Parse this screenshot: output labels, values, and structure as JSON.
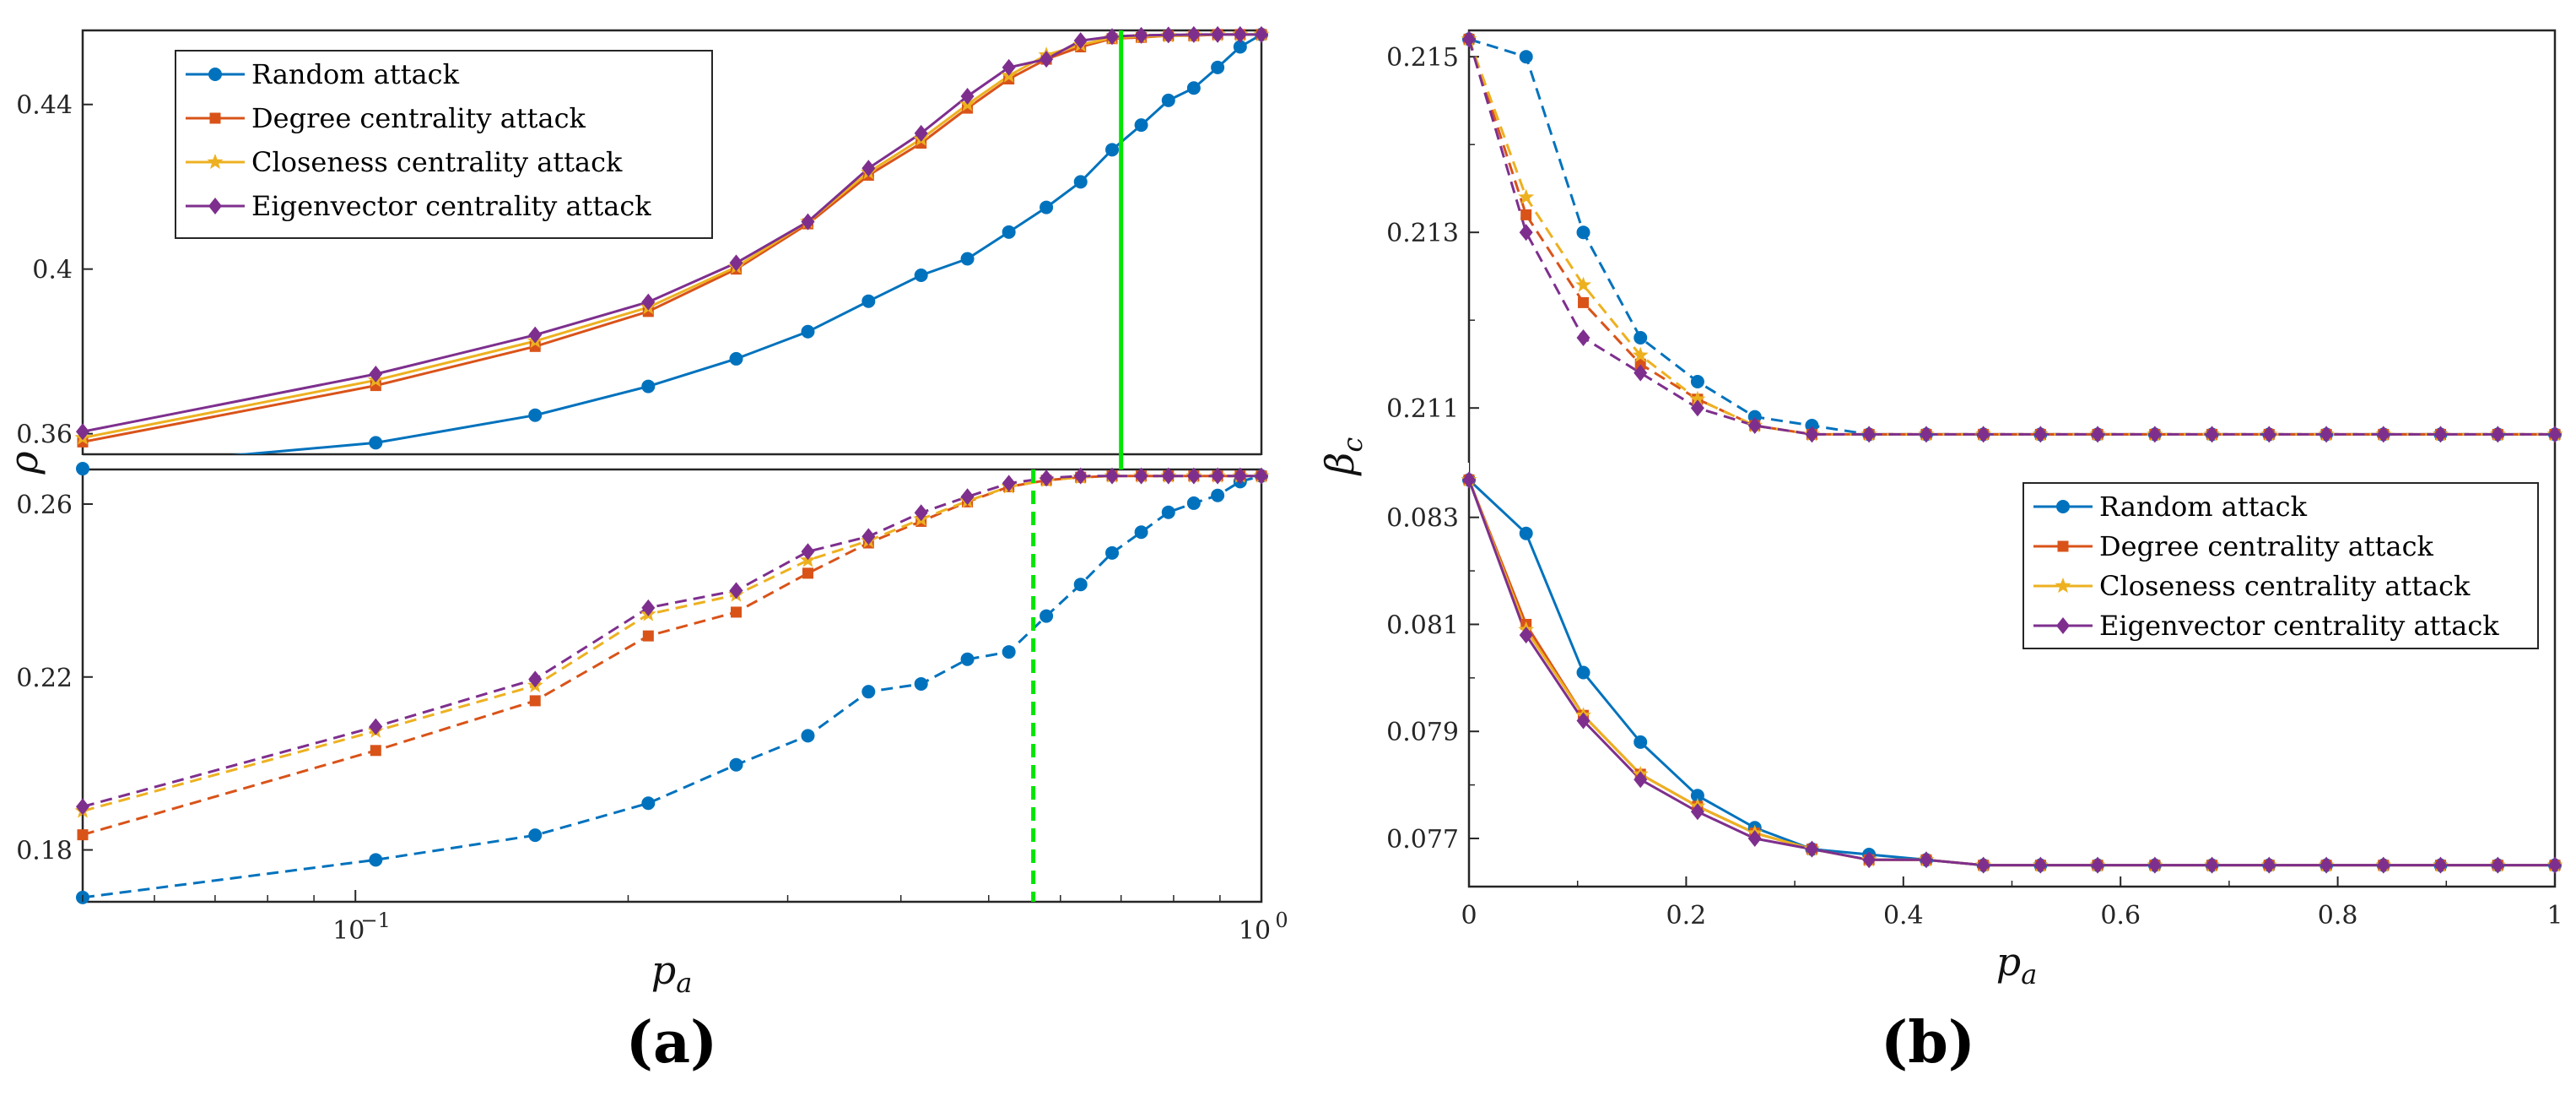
{
  "colors": {
    "random": "#0072BD",
    "degree": "#D95319",
    "closeness": "#EDB120",
    "eigenvector": "#7E2F8E",
    "green": "#00E600"
  },
  "panels": {
    "a": {
      "label": "(a)",
      "xlabel": "p",
      "xlabel_sub": "a",
      "ylabel": "ρ",
      "xticks": [
        "10",
        "10"
      ],
      "xtick_exps": [
        "−1",
        "0"
      ]
    },
    "b": {
      "label": "(b)",
      "xlabel": "p",
      "xlabel_sub": "a",
      "ylabel": "β",
      "ylabel_sub": "c"
    }
  },
  "legend": [
    "Random attack",
    "Degree centrality attack",
    "Closeness centrality attack",
    "Eigenvector centrality attack"
  ],
  "chart_data": [
    {
      "type": "line",
      "title": "(a) top: rho vs p_a (solid lines)",
      "xscale": "log",
      "xlim": [
        0.05,
        1.0
      ],
      "ylim": [
        0.355,
        0.458
      ],
      "yticks": [
        0.36,
        0.4,
        0.44
      ],
      "ytick_labels": [
        "0.36",
        "0.4",
        "0.44"
      ],
      "x": [
        0.05,
        0.1053,
        0.1579,
        0.2105,
        0.2632,
        0.3158,
        0.3684,
        0.4211,
        0.4737,
        0.5263,
        0.5789,
        0.6316,
        0.6842,
        0.7368,
        0.7895,
        0.8421,
        0.8947,
        0.9474,
        1.0
      ],
      "series": [
        {
          "name": "Random attack",
          "values": [
            0.3515,
            0.3578,
            0.3645,
            0.3715,
            0.3782,
            0.3848,
            0.3922,
            0.3985,
            0.4025,
            0.409,
            0.415,
            0.4212,
            0.429,
            0.435,
            0.441,
            0.444,
            0.449,
            0.454,
            0.457
          ]
        },
        {
          "name": "Degree centrality attack",
          "values": [
            0.358,
            0.3717,
            0.3812,
            0.3897,
            0.4,
            0.411,
            0.4228,
            0.4306,
            0.4391,
            0.4462,
            0.451,
            0.454,
            0.456,
            0.4563,
            0.4567,
            0.4567,
            0.457,
            0.457,
            0.457
          ]
        },
        {
          "name": "Closeness centrality attack",
          "values": [
            0.359,
            0.373,
            0.3825,
            0.3907,
            0.4005,
            0.4115,
            0.4235,
            0.4316,
            0.44,
            0.447,
            0.452,
            0.4545,
            0.4562,
            0.4565,
            0.4567,
            0.4568,
            0.457,
            0.457,
            0.457
          ]
        },
        {
          "name": "Eigenvector centrality attack",
          "values": [
            0.3605,
            0.3745,
            0.384,
            0.392,
            0.4015,
            0.4115,
            0.4245,
            0.433,
            0.442,
            0.449,
            0.451,
            0.4555,
            0.4565,
            0.4568,
            0.4569,
            0.457,
            0.457,
            0.457,
            0.457
          ]
        }
      ],
      "vline": {
        "x": 0.7,
        "style": "solid"
      }
    },
    {
      "type": "line",
      "title": "(a) bottom: rho vs p_a (dashed lines)",
      "xscale": "log",
      "xlim": [
        0.05,
        1.0
      ],
      "ylim": [
        0.168,
        0.268
      ],
      "yticks": [
        0.18,
        0.22,
        0.26
      ],
      "ytick_labels": [
        "0.18",
        "0.22",
        "0.26"
      ],
      "x": [
        0.05,
        0.1053,
        0.1579,
        0.2105,
        0.2632,
        0.3158,
        0.3684,
        0.4211,
        0.4737,
        0.5263,
        0.5789,
        0.6316,
        0.6842,
        0.7368,
        0.7895,
        0.8421,
        0.8947,
        0.9474,
        1.0
      ],
      "series": [
        {
          "name": "Random attack",
          "values": [
            0.169,
            0.1777,
            0.1834,
            0.1908,
            0.1997,
            0.2064,
            0.2166,
            0.2184,
            0.2241,
            0.2258,
            0.2341,
            0.2414,
            0.2487,
            0.2535,
            0.2581,
            0.2602,
            0.262,
            0.2652,
            0.2665
          ]
        },
        {
          "name": "Degree centrality attack",
          "values": [
            0.1835,
            0.203,
            0.2145,
            0.2295,
            0.235,
            0.244,
            0.251,
            0.256,
            0.2605,
            0.264,
            0.2655,
            0.2662,
            0.2665,
            0.2665,
            0.2665,
            0.2665,
            0.2665,
            0.2665,
            0.2665
          ]
        },
        {
          "name": "Closeness centrality attack",
          "values": [
            0.189,
            0.2075,
            0.218,
            0.2345,
            0.239,
            0.247,
            0.2515,
            0.2565,
            0.2607,
            0.264,
            0.2655,
            0.2662,
            0.2665,
            0.2665,
            0.2665,
            0.2665,
            0.2665,
            0.2665,
            0.2665
          ]
        },
        {
          "name": "Eigenvector centrality attack",
          "values": [
            0.19,
            0.2085,
            0.2195,
            0.236,
            0.24,
            0.249,
            0.2525,
            0.258,
            0.2617,
            0.2648,
            0.266,
            0.2665,
            0.2665,
            0.2665,
            0.2665,
            0.2665,
            0.2665,
            0.2665,
            0.2665
          ]
        }
      ],
      "vline": {
        "x": 0.56,
        "style": "dashed"
      }
    },
    {
      "type": "line",
      "title": "(b) top: beta_c vs p_a (dashed lines)",
      "xlim": [
        0,
        1
      ],
      "ylim": [
        0.2103,
        0.2153
      ],
      "yticks": [
        0.211,
        0.213,
        0.215
      ],
      "ytick_labels": [
        "0.211",
        "0.213",
        "0.215"
      ],
      "x": [
        0,
        0.0526,
        0.1053,
        0.1579,
        0.2105,
        0.2632,
        0.3158,
        0.3684,
        0.4211,
        0.4737,
        0.5263,
        0.5789,
        0.6316,
        0.6842,
        0.7368,
        0.7895,
        0.8421,
        0.8947,
        0.9474,
        1.0
      ],
      "series": [
        {
          "name": "Random attack",
          "values": [
            0.2152,
            0.215,
            0.213,
            0.2118,
            0.2113,
            0.2109,
            0.2108,
            0.2107,
            0.2107,
            0.2107,
            0.2107,
            0.2107,
            0.2107,
            0.2107,
            0.2107,
            0.2107,
            0.2107,
            0.2107,
            0.2107,
            0.2107
          ]
        },
        {
          "name": "Degree centrality attack",
          "values": [
            0.2152,
            0.2132,
            0.2122,
            0.2115,
            0.2111,
            0.2108,
            0.2107,
            0.2107,
            0.2107,
            0.2107,
            0.2107,
            0.2107,
            0.2107,
            0.2107,
            0.2107,
            0.2107,
            0.2107,
            0.2107,
            0.2107,
            0.2107
          ]
        },
        {
          "name": "Closeness centrality attack",
          "values": [
            0.2152,
            0.2134,
            0.2124,
            0.2116,
            0.2111,
            0.2108,
            0.2107,
            0.2107,
            0.2107,
            0.2107,
            0.2107,
            0.2107,
            0.2107,
            0.2107,
            0.2107,
            0.2107,
            0.2107,
            0.2107,
            0.2107,
            0.2107
          ]
        },
        {
          "name": "Eigenvector centrality attack",
          "values": [
            0.2152,
            0.213,
            0.2118,
            0.2114,
            0.211,
            0.2108,
            0.2107,
            0.2107,
            0.2107,
            0.2107,
            0.2107,
            0.2107,
            0.2107,
            0.2107,
            0.2107,
            0.2107,
            0.2107,
            0.2107,
            0.2107,
            0.2107
          ]
        }
      ]
    },
    {
      "type": "line",
      "title": "(b) bottom: beta_c vs p_a (solid lines)",
      "xlim": [
        0,
        1
      ],
      "ylim": [
        0.0761,
        0.0838
      ],
      "yticks": [
        0.077,
        0.079,
        0.081,
        0.083
      ],
      "ytick_labels": [
        "0.077",
        "0.079",
        "0.081",
        "0.083"
      ],
      "x": [
        0,
        0.0526,
        0.1053,
        0.1579,
        0.2105,
        0.2632,
        0.3158,
        0.3684,
        0.4211,
        0.4737,
        0.5263,
        0.5789,
        0.6316,
        0.6842,
        0.7368,
        0.7895,
        0.8421,
        0.8947,
        0.9474,
        1.0
      ],
      "series": [
        {
          "name": "Random attack",
          "values": [
            0.0837,
            0.0827,
            0.0801,
            0.0788,
            0.0778,
            0.0772,
            0.0768,
            0.0767,
            0.0766,
            0.0765,
            0.0765,
            0.0765,
            0.0765,
            0.0765,
            0.0765,
            0.0765,
            0.0765,
            0.0765,
            0.0765,
            0.0765
          ]
        },
        {
          "name": "Degree centrality attack",
          "values": [
            0.0837,
            0.081,
            0.0793,
            0.0782,
            0.0776,
            0.0771,
            0.0768,
            0.0766,
            0.0766,
            0.0765,
            0.0765,
            0.0765,
            0.0765,
            0.0765,
            0.0765,
            0.0765,
            0.0765,
            0.0765,
            0.0765,
            0.0765
          ]
        },
        {
          "name": "Closeness centrality attack",
          "values": [
            0.0837,
            0.0809,
            0.0793,
            0.0782,
            0.0776,
            0.0771,
            0.0768,
            0.0766,
            0.0766,
            0.0765,
            0.0765,
            0.0765,
            0.0765,
            0.0765,
            0.0765,
            0.0765,
            0.0765,
            0.0765,
            0.0765,
            0.0765
          ]
        },
        {
          "name": "Eigenvector centrality attack",
          "values": [
            0.0837,
            0.0808,
            0.0792,
            0.0781,
            0.0775,
            0.077,
            0.0768,
            0.0766,
            0.0766,
            0.0765,
            0.0765,
            0.0765,
            0.0765,
            0.0765,
            0.0765,
            0.0765,
            0.0765,
            0.0765,
            0.0765,
            0.0765
          ]
        }
      ],
      "xticks": [
        0,
        0.2,
        0.4,
        0.6,
        0.8,
        1
      ],
      "xtick_labels": [
        "0",
        "0.2",
        "0.4",
        "0.6",
        "0.8",
        "1"
      ]
    }
  ]
}
